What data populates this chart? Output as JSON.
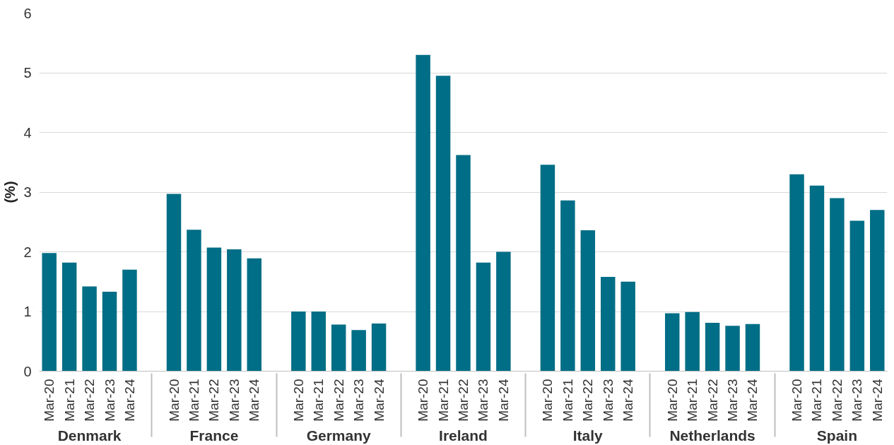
{
  "chart_data": {
    "type": "bar",
    "ylabel": "(%)",
    "categories": [
      "Denmark",
      "France",
      "Germany",
      "Ireland",
      "Italy",
      "Netherlands",
      "Spain"
    ],
    "series": [
      {
        "name": "Mar-20",
        "color": "#006e86",
        "values": [
          1.98,
          2.97,
          1.0,
          5.3,
          3.46,
          0.97,
          3.3
        ]
      },
      {
        "name": "Mar-21",
        "color": "#006e86",
        "values": [
          1.82,
          2.37,
          1.0,
          4.95,
          2.86,
          0.99,
          3.11
        ]
      },
      {
        "name": "Mar-22",
        "color": "#006e86",
        "values": [
          1.42,
          2.07,
          0.78,
          3.62,
          2.36,
          0.81,
          2.9
        ]
      },
      {
        "name": "Mar-23",
        "color": "#006e86",
        "values": [
          1.33,
          2.04,
          0.69,
          1.82,
          1.58,
          0.76,
          2.52
        ]
      },
      {
        "name": "Mar-24",
        "color": "#006e86",
        "values": [
          1.7,
          1.89,
          0.8,
          2.0,
          1.5,
          0.79,
          2.7
        ]
      }
    ],
    "ylim": [
      0,
      6
    ],
    "yticks": [
      0,
      1,
      2,
      3,
      4,
      5,
      6
    ],
    "grid": "y"
  }
}
